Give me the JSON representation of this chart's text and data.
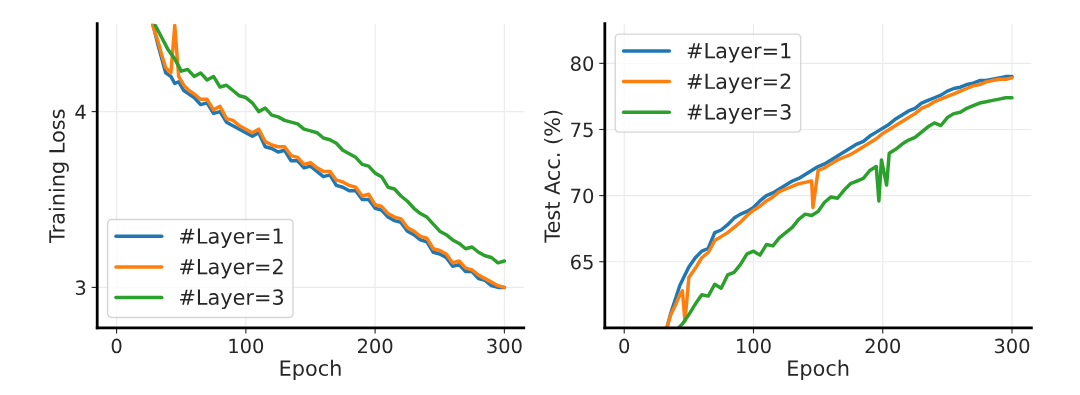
{
  "chart_data": [
    {
      "type": "line",
      "xlabel": "Epoch",
      "ylabel": "Training Loss",
      "xlim": [
        -15,
        315
      ],
      "ylim": [
        2.77,
        4.5
      ],
      "xticks": [
        0,
        100,
        200,
        300
      ],
      "yticks": [
        3,
        4
      ],
      "grid": true,
      "legend": "bottom left",
      "line_style": "solid",
      "series": [
        {
          "name": "#Layer=1",
          "color": "#1f77b4",
          "x": [
            28,
            32,
            35,
            38,
            42,
            45,
            48,
            52,
            56,
            60,
            65,
            70,
            75,
            80,
            85,
            90,
            95,
            100,
            105,
            110,
            115,
            120,
            125,
            130,
            135,
            140,
            145,
            150,
            155,
            160,
            165,
            170,
            175,
            180,
            185,
            190,
            195,
            200,
            205,
            210,
            215,
            220,
            225,
            230,
            235,
            240,
            245,
            250,
            255,
            260,
            265,
            270,
            275,
            280,
            285,
            290,
            295,
            300
          ],
          "values": [
            4.5,
            4.38,
            4.3,
            4.22,
            4.2,
            4.16,
            4.17,
            4.12,
            4.1,
            4.08,
            4.04,
            4.05,
            3.99,
            4.0,
            3.94,
            3.92,
            3.9,
            3.88,
            3.86,
            3.88,
            3.8,
            3.79,
            3.77,
            3.78,
            3.72,
            3.72,
            3.68,
            3.69,
            3.66,
            3.63,
            3.64,
            3.58,
            3.57,
            3.55,
            3.55,
            3.5,
            3.5,
            3.45,
            3.44,
            3.4,
            3.38,
            3.37,
            3.32,
            3.3,
            3.27,
            3.26,
            3.2,
            3.19,
            3.17,
            3.12,
            3.13,
            3.09,
            3.09,
            3.05,
            3.04,
            3.01,
            3.0,
            3.0
          ]
        },
        {
          "name": "#Layer=2",
          "color": "#ff7f0e",
          "x": [
            28,
            32,
            35,
            38,
            42,
            45,
            48,
            52,
            56,
            60,
            65,
            70,
            75,
            80,
            85,
            90,
            95,
            100,
            105,
            110,
            115,
            120,
            125,
            130,
            135,
            140,
            145,
            150,
            155,
            160,
            165,
            170,
            175,
            180,
            185,
            190,
            195,
            200,
            205,
            210,
            215,
            220,
            225,
            230,
            235,
            240,
            245,
            250,
            255,
            260,
            265,
            270,
            275,
            280,
            285,
            290,
            295,
            300
          ],
          "values": [
            4.49,
            4.4,
            4.32,
            4.25,
            4.22,
            4.49,
            4.2,
            4.15,
            4.12,
            4.1,
            4.07,
            4.07,
            4.01,
            4.03,
            3.96,
            3.95,
            3.92,
            3.9,
            3.88,
            3.9,
            3.83,
            3.81,
            3.8,
            3.8,
            3.75,
            3.74,
            3.7,
            3.71,
            3.68,
            3.66,
            3.66,
            3.61,
            3.6,
            3.58,
            3.57,
            3.52,
            3.53,
            3.47,
            3.46,
            3.42,
            3.4,
            3.39,
            3.34,
            3.32,
            3.29,
            3.28,
            3.22,
            3.21,
            3.19,
            3.14,
            3.15,
            3.11,
            3.1,
            3.07,
            3.05,
            3.03,
            3.01,
            3.0
          ]
        },
        {
          "name": "#Layer=3",
          "color": "#2ca02c",
          "x": [
            30,
            35,
            40,
            45,
            50,
            55,
            60,
            65,
            70,
            75,
            80,
            85,
            90,
            95,
            100,
            105,
            110,
            115,
            120,
            125,
            130,
            135,
            140,
            145,
            150,
            155,
            160,
            165,
            170,
            175,
            180,
            185,
            190,
            195,
            200,
            205,
            210,
            215,
            220,
            225,
            230,
            235,
            240,
            245,
            250,
            255,
            260,
            265,
            270,
            275,
            280,
            285,
            290,
            295,
            300
          ],
          "values": [
            4.49,
            4.42,
            4.35,
            4.3,
            4.23,
            4.24,
            4.2,
            4.22,
            4.18,
            4.2,
            4.14,
            4.15,
            4.12,
            4.09,
            4.08,
            4.05,
            4.0,
            4.02,
            3.98,
            3.97,
            3.95,
            3.94,
            3.93,
            3.9,
            3.89,
            3.88,
            3.85,
            3.84,
            3.82,
            3.78,
            3.76,
            3.74,
            3.7,
            3.69,
            3.65,
            3.63,
            3.57,
            3.56,
            3.52,
            3.49,
            3.45,
            3.42,
            3.4,
            3.36,
            3.32,
            3.3,
            3.27,
            3.25,
            3.22,
            3.23,
            3.2,
            3.18,
            3.17,
            3.14,
            3.15
          ]
        }
      ]
    },
    {
      "type": "line",
      "xlabel": "Epoch",
      "ylabel": "Test Acc. (%)",
      "xlim": [
        -15,
        315
      ],
      "ylim": [
        60,
        83
      ],
      "xticks": [
        0,
        100,
        200,
        300
      ],
      "yticks": [
        65,
        70,
        75,
        80
      ],
      "grid": true,
      "legend": "top left",
      "line_style": "solid",
      "series": [
        {
          "name": "#Layer=1",
          "color": "#1f77b4",
          "x": [
            33,
            36,
            40,
            43,
            46,
            50,
            55,
            60,
            65,
            70,
            75,
            80,
            85,
            90,
            95,
            100,
            105,
            110,
            115,
            120,
            125,
            130,
            135,
            140,
            145,
            150,
            155,
            160,
            165,
            170,
            175,
            180,
            185,
            190,
            195,
            200,
            205,
            210,
            215,
            220,
            225,
            230,
            235,
            240,
            245,
            250,
            255,
            260,
            265,
            270,
            275,
            280,
            285,
            290,
            295,
            300
          ],
          "values": [
            60.0,
            61.1,
            62.3,
            63.2,
            63.8,
            64.6,
            65.3,
            65.8,
            66.0,
            67.2,
            67.4,
            67.8,
            68.3,
            68.6,
            68.8,
            69.1,
            69.6,
            70.0,
            70.2,
            70.5,
            70.8,
            71.1,
            71.3,
            71.6,
            71.9,
            72.2,
            72.4,
            72.7,
            73.0,
            73.3,
            73.6,
            73.9,
            74.1,
            74.5,
            74.8,
            75.1,
            75.4,
            75.8,
            76.1,
            76.4,
            76.6,
            77.0,
            77.2,
            77.4,
            77.6,
            77.9,
            78.1,
            78.2,
            78.4,
            78.5,
            78.7,
            78.7,
            78.8,
            78.9,
            79.0,
            79.0
          ]
        },
        {
          "name": "#Layer=2",
          "color": "#ff7f0e",
          "x": [
            33,
            36,
            40,
            43,
            45,
            47,
            50,
            55,
            60,
            65,
            70,
            75,
            80,
            85,
            90,
            95,
            100,
            105,
            110,
            115,
            120,
            125,
            130,
            135,
            140,
            145,
            146,
            150,
            155,
            160,
            165,
            170,
            175,
            180,
            185,
            190,
            195,
            200,
            205,
            210,
            215,
            220,
            225,
            230,
            235,
            240,
            245,
            250,
            255,
            260,
            265,
            270,
            275,
            280,
            285,
            290,
            295,
            300
          ],
          "values": [
            60.0,
            61.0,
            61.8,
            62.5,
            62.8,
            60.5,
            63.8,
            64.5,
            65.3,
            65.7,
            66.6,
            66.9,
            67.2,
            67.6,
            68.0,
            68.5,
            68.9,
            69.2,
            69.6,
            69.9,
            70.3,
            70.5,
            70.7,
            70.9,
            71.0,
            71.1,
            69.1,
            71.9,
            72.1,
            72.4,
            72.7,
            72.9,
            73.1,
            73.4,
            73.7,
            74.0,
            74.3,
            74.7,
            75.0,
            75.3,
            75.6,
            75.9,
            76.2,
            76.6,
            76.8,
            77.1,
            77.3,
            77.5,
            77.7,
            77.9,
            78.1,
            78.3,
            78.4,
            78.6,
            78.7,
            78.8,
            78.8,
            78.9
          ]
        },
        {
          "name": "#Layer=3",
          "color": "#2ca02c",
          "x": [
            42,
            45,
            50,
            55,
            60,
            65,
            70,
            75,
            80,
            85,
            90,
            95,
            100,
            105,
            110,
            115,
            120,
            125,
            130,
            135,
            140,
            145,
            150,
            155,
            160,
            165,
            170,
            175,
            180,
            185,
            190,
            195,
            197,
            199,
            203,
            205,
            210,
            215,
            220,
            225,
            230,
            235,
            240,
            245,
            250,
            255,
            260,
            265,
            270,
            275,
            280,
            285,
            290,
            295,
            300
          ],
          "values": [
            60.0,
            60.3,
            61.0,
            61.8,
            62.5,
            62.4,
            63.3,
            63.0,
            64.0,
            64.2,
            64.8,
            65.6,
            65.8,
            65.5,
            66.3,
            66.2,
            66.8,
            67.2,
            67.6,
            68.2,
            68.6,
            68.5,
            68.8,
            69.5,
            69.9,
            69.8,
            70.4,
            70.9,
            71.1,
            71.3,
            71.9,
            72.2,
            69.6,
            72.7,
            70.8,
            73.2,
            73.5,
            73.9,
            74.2,
            74.4,
            74.8,
            75.2,
            75.5,
            75.3,
            75.9,
            76.2,
            76.3,
            76.6,
            76.8,
            77.0,
            77.1,
            77.2,
            77.3,
            77.4,
            77.4
          ]
        }
      ]
    }
  ]
}
